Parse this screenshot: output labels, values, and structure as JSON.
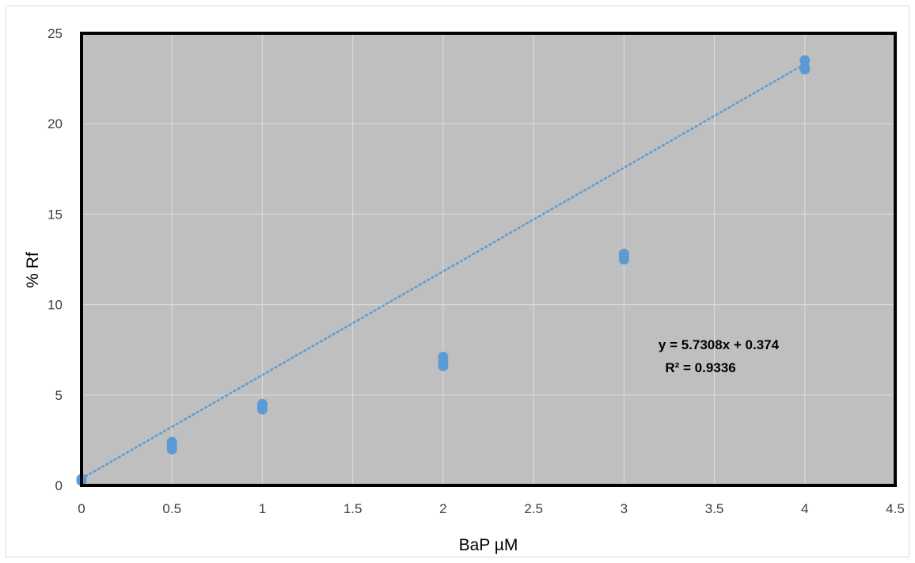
{
  "chart_data": {
    "type": "scatter",
    "title": "",
    "xlabel": "BaP µM",
    "ylabel": "% Rf",
    "xlim": [
      0,
      4.5
    ],
    "ylim": [
      0,
      25
    ],
    "x_ticks": [
      "0",
      "0.5",
      "1",
      "1.5",
      "2",
      "2.5",
      "3",
      "3.5",
      "4",
      "4.5"
    ],
    "y_ticks": [
      "0",
      "5",
      "10",
      "15",
      "20",
      "25"
    ],
    "grid": true,
    "legend": "none",
    "colors": {
      "plot_background": "#bfbfbf",
      "gridline": "#d9d9d9",
      "plot_border": "#000000",
      "marker": "#5b9bd5",
      "trendline": "#5b9bd5"
    },
    "series": [
      {
        "points": [
          [
            0,
            0.3
          ],
          [
            0,
            0.25
          ],
          [
            0,
            0.35
          ],
          [
            0.5,
            2.0
          ],
          [
            0.5,
            2.2
          ],
          [
            0.5,
            2.4
          ],
          [
            1,
            4.2
          ],
          [
            1,
            4.35
          ],
          [
            1,
            4.5
          ],
          [
            2,
            6.6
          ],
          [
            2,
            6.8
          ],
          [
            2,
            7.1
          ],
          [
            3,
            12.5
          ],
          [
            3,
            12.65
          ],
          [
            3,
            12.8
          ],
          [
            4,
            23.0
          ],
          [
            4,
            23.1
          ],
          [
            4,
            23.5
          ]
        ]
      }
    ],
    "trendline": {
      "type": "linear",
      "slope": 5.7308,
      "intercept": 0.374,
      "x_range": [
        0,
        4
      ],
      "equation_label": "y = 5.7308x  +  0.374",
      "r2_label": "R² = 0.9336"
    }
  }
}
